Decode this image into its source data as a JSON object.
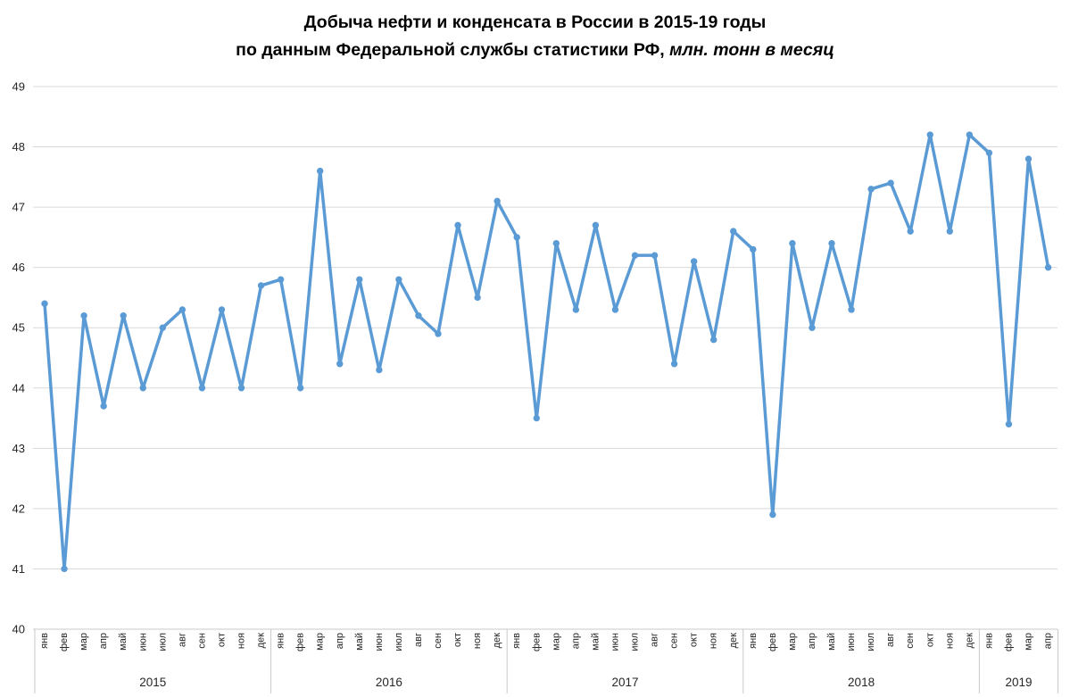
{
  "title": {
    "line1": "Добыча нефти и конденсата в России в 2015-19 годы",
    "line2_bold": "по данным Федеральной службы статистики РФ,",
    "line2_italic": "млн. тонн в месяц"
  },
  "colors": {
    "line": "#5B9BD5",
    "gridline": "#D9D9D9",
    "axis_line": "#C9C9C9",
    "label_text": "#262626",
    "title_text": "#000000",
    "background": "#FFFFFF"
  },
  "y_axis": {
    "min": 40,
    "max": 49,
    "ticks": [
      49,
      48,
      47,
      46,
      45,
      44,
      43,
      42,
      41,
      40
    ]
  },
  "chart_data": {
    "type": "line",
    "title": "Добыча нефти и конденсата в России в 2015-19 годы по данным Федеральной службы статистики РФ, млн. тонн в месяц",
    "xlabel": "",
    "ylabel": "млн. тонн в месяц",
    "ylim": [
      40,
      49
    ],
    "grid": true,
    "legend": "none",
    "line_color": "#5B9BD5",
    "marker": "circle",
    "groups": [
      {
        "year": "2015",
        "months": [
          "янв",
          "фев",
          "мар",
          "апр",
          "май",
          "июн",
          "июл",
          "авг",
          "сен",
          "окт",
          "ноя",
          "дек"
        ],
        "values": [
          45.4,
          41.0,
          45.2,
          43.7,
          45.2,
          44.0,
          45.0,
          45.3,
          44.0,
          45.3,
          44.0,
          45.7
        ]
      },
      {
        "year": "2016",
        "months": [
          "янв",
          "фев",
          "мар",
          "апр",
          "май",
          "июн",
          "июл",
          "авг",
          "сен",
          "окт",
          "ноя",
          "дек"
        ],
        "values": [
          45.8,
          44.0,
          47.6,
          44.4,
          45.8,
          44.3,
          45.8,
          45.2,
          44.9,
          46.7,
          45.5,
          47.1
        ]
      },
      {
        "year": "2017",
        "months": [
          "янв",
          "фев",
          "мар",
          "апр",
          "май",
          "июн",
          "июл",
          "авг",
          "сен",
          "окт",
          "ноя",
          "дек"
        ],
        "values": [
          46.5,
          43.5,
          46.4,
          45.3,
          46.7,
          45.3,
          46.2,
          46.2,
          44.4,
          46.1,
          44.8,
          46.6
        ]
      },
      {
        "year": "2018",
        "months": [
          "янв",
          "фев",
          "мар",
          "апр",
          "май",
          "июн",
          "июл",
          "авг",
          "сен",
          "окт",
          "ноя",
          "дек"
        ],
        "values": [
          46.3,
          41.9,
          46.4,
          45.0,
          46.4,
          45.3,
          47.3,
          47.4,
          46.6,
          48.2,
          46.6,
          48.2
        ]
      },
      {
        "year": "2019",
        "months": [
          "янв",
          "фев",
          "мар",
          "апр"
        ],
        "values": [
          47.9,
          43.4,
          47.8,
          46.0
        ]
      }
    ]
  }
}
